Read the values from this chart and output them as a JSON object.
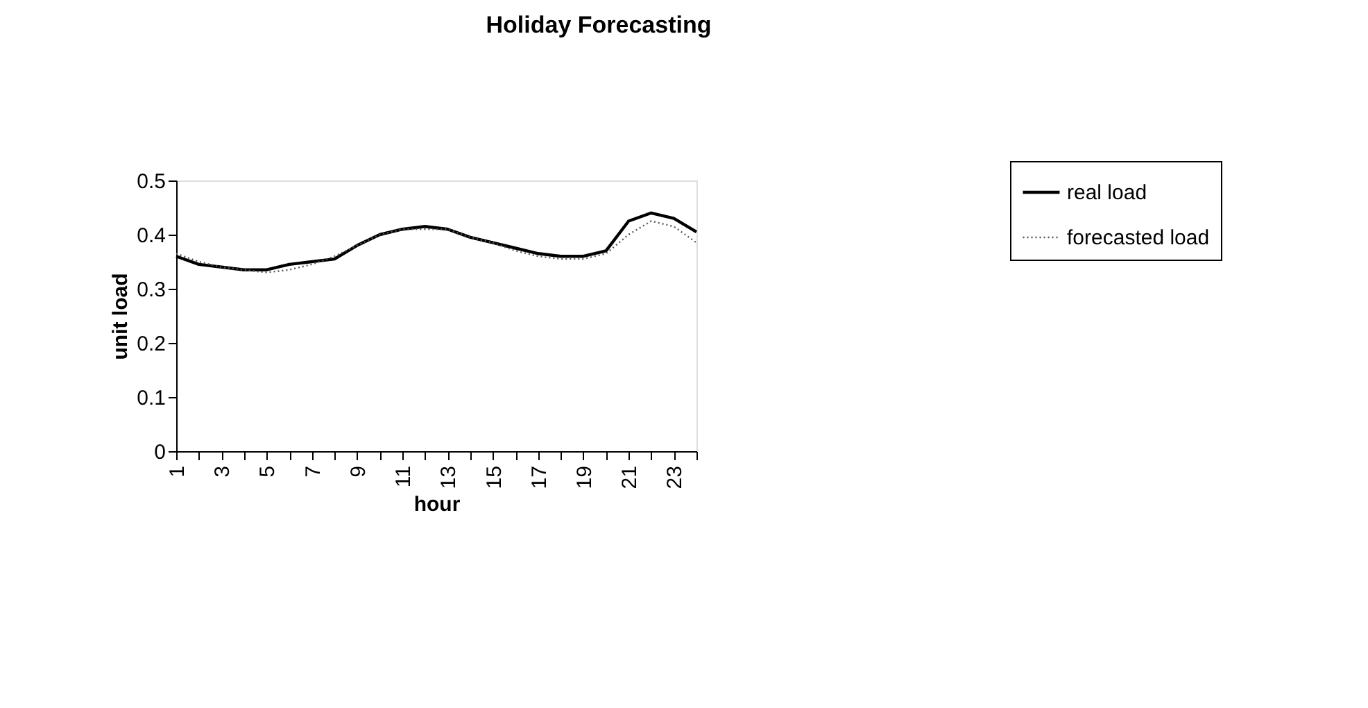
{
  "chart_data": {
    "type": "line",
    "title": "Holiday Forecasting",
    "xlabel": "hour",
    "ylabel": "unit load",
    "x": [
      1,
      2,
      3,
      4,
      5,
      6,
      7,
      8,
      9,
      10,
      11,
      12,
      13,
      14,
      15,
      16,
      17,
      18,
      19,
      20,
      21,
      22,
      23,
      24
    ],
    "xlim": [
      1,
      24
    ],
    "xticks": [
      1,
      {
        "value": 2,
        "label": null
      },
      3,
      {
        "value": 4,
        "label": null
      },
      5,
      {
        "value": 6,
        "label": null
      },
      7,
      {
        "value": 8,
        "label": null
      },
      9,
      {
        "value": 10,
        "label": null
      },
      11,
      {
        "value": 12,
        "label": null
      },
      13,
      {
        "value": 14,
        "label": null
      },
      15,
      {
        "value": 16,
        "label": null
      },
      17,
      {
        "value": 18,
        "label": null
      },
      19,
      {
        "value": 20,
        "label": null
      },
      21,
      {
        "value": 22,
        "label": null
      },
      23,
      {
        "value": 24,
        "label": null
      }
    ],
    "ylim": [
      0,
      0.5
    ],
    "yticks": [
      0,
      0.1,
      0.2,
      0.3,
      0.4,
      0.5
    ],
    "series": [
      {
        "name": "real load",
        "color": "#000000",
        "line_style": "solid",
        "values": [
          0.36,
          0.345,
          0.34,
          0.335,
          0.335,
          0.345,
          0.35,
          0.355,
          0.38,
          0.4,
          0.41,
          0.415,
          0.41,
          0.395,
          0.385,
          0.375,
          0.365,
          0.36,
          0.36,
          0.37,
          0.425,
          0.44,
          0.43,
          0.405
        ]
      },
      {
        "name": "forecasted load",
        "color": "#555555",
        "line_style": "dotted",
        "values": [
          0.365,
          0.35,
          0.34,
          0.335,
          0.33,
          0.335,
          0.345,
          0.36,
          0.38,
          0.4,
          0.41,
          0.41,
          0.41,
          0.395,
          0.385,
          0.37,
          0.36,
          0.355,
          0.355,
          0.365,
          0.4,
          0.425,
          0.415,
          0.385
        ]
      }
    ],
    "marker": "none",
    "grid": false,
    "legend": "right"
  }
}
